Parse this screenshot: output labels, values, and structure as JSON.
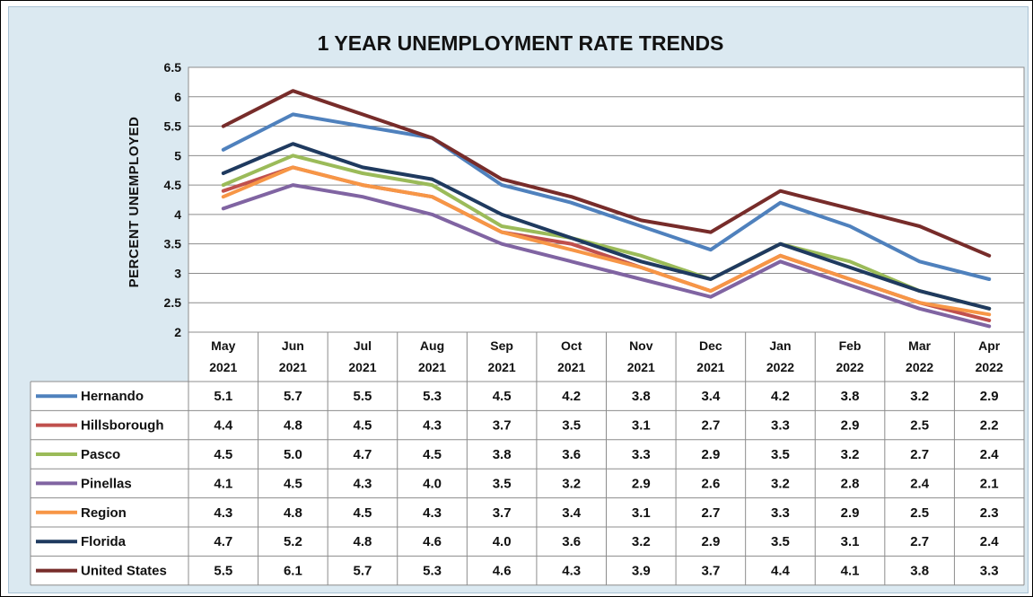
{
  "chart_data": {
    "type": "line",
    "title": "1 YEAR UNEMPLOYMENT RATE TRENDS",
    "ylabel": "PERCENT UNEMPLOYED",
    "xlabel": "",
    "ylim": [
      2,
      6.5
    ],
    "yticks": [
      "6.5",
      "6",
      "5.5",
      "5",
      "4.5",
      "4",
      "3.5",
      "3",
      "2.5",
      "2"
    ],
    "ytick_values": [
      6.5,
      6,
      5.5,
      5,
      4.5,
      4,
      3.5,
      3,
      2.5,
      2
    ],
    "categories": [
      {
        "month": "May",
        "year": "2021"
      },
      {
        "month": "Jun",
        "year": "2021"
      },
      {
        "month": "Jul",
        "year": "2021"
      },
      {
        "month": "Aug",
        "year": "2021"
      },
      {
        "month": "Sep",
        "year": "2021"
      },
      {
        "month": "Oct",
        "year": "2021"
      },
      {
        "month": "Nov",
        "year": "2021"
      },
      {
        "month": "Dec",
        "year": "2021"
      },
      {
        "month": "Jan",
        "year": "2022"
      },
      {
        "month": "Feb",
        "year": "2022"
      },
      {
        "month": "Mar",
        "year": "2022"
      },
      {
        "month": "Apr",
        "year": "2022"
      }
    ],
    "grid": true,
    "legend": "data table",
    "series": [
      {
        "name": "Hernando",
        "color": "#4f81bd",
        "values": [
          5.1,
          5.7,
          5.5,
          5.3,
          4.5,
          4.2,
          3.8,
          3.4,
          4.2,
          3.8,
          3.2,
          2.9
        ],
        "labels": [
          "5.1",
          "5.7",
          "5.5",
          "5.3",
          "4.5",
          "4.2",
          "3.8",
          "3.4",
          "4.2",
          "3.8",
          "3.2",
          "2.9"
        ]
      },
      {
        "name": "Hillsborough",
        "color": "#c0504d",
        "values": [
          4.4,
          4.8,
          4.5,
          4.3,
          3.7,
          3.5,
          3.1,
          2.7,
          3.3,
          2.9,
          2.5,
          2.2
        ],
        "labels": [
          "4.4",
          "4.8",
          "4.5",
          "4.3",
          "3.7",
          "3.5",
          "3.1",
          "2.7",
          "3.3",
          "2.9",
          "2.5",
          "2.2"
        ]
      },
      {
        "name": "Pasco",
        "color": "#9bbb59",
        "values": [
          4.5,
          5.0,
          4.7,
          4.5,
          3.8,
          3.6,
          3.3,
          2.9,
          3.5,
          3.2,
          2.7,
          2.4
        ],
        "labels": [
          "4.5",
          "5.0",
          "4.7",
          "4.5",
          "3.8",
          "3.6",
          "3.3",
          "2.9",
          "3.5",
          "3.2",
          "2.7",
          "2.4"
        ]
      },
      {
        "name": "Pinellas",
        "color": "#8064a2",
        "values": [
          4.1,
          4.5,
          4.3,
          4.0,
          3.5,
          3.2,
          2.9,
          2.6,
          3.2,
          2.8,
          2.4,
          2.1
        ],
        "labels": [
          "4.1",
          "4.5",
          "4.3",
          "4.0",
          "3.5",
          "3.2",
          "2.9",
          "2.6",
          "3.2",
          "2.8",
          "2.4",
          "2.1"
        ]
      },
      {
        "name": "Region",
        "color": "#f79646",
        "values": [
          4.3,
          4.8,
          4.5,
          4.3,
          3.7,
          3.4,
          3.1,
          2.7,
          3.3,
          2.9,
          2.5,
          2.3
        ],
        "labels": [
          "4.3",
          "4.8",
          "4.5",
          "4.3",
          "3.7",
          "3.4",
          "3.1",
          "2.7",
          "3.3",
          "2.9",
          "2.5",
          "2.3"
        ]
      },
      {
        "name": "Florida",
        "color": "#1f3a5f",
        "values": [
          4.7,
          5.2,
          4.8,
          4.6,
          4.0,
          3.6,
          3.2,
          2.9,
          3.5,
          3.1,
          2.7,
          2.4
        ],
        "labels": [
          "4.7",
          "5.2",
          "4.8",
          "4.6",
          "4.0",
          "3.6",
          "3.2",
          "2.9",
          "3.5",
          "3.1",
          "2.7",
          "2.4"
        ]
      },
      {
        "name": "United States",
        "color": "#772c2a",
        "values": [
          5.5,
          6.1,
          5.7,
          5.3,
          4.6,
          4.3,
          3.9,
          3.7,
          4.4,
          4.1,
          3.8,
          3.3
        ],
        "labels": [
          "5.5",
          "6.1",
          "5.7",
          "5.3",
          "4.6",
          "4.3",
          "3.9",
          "3.7",
          "4.4",
          "4.1",
          "3.8",
          "3.3"
        ]
      }
    ]
  }
}
